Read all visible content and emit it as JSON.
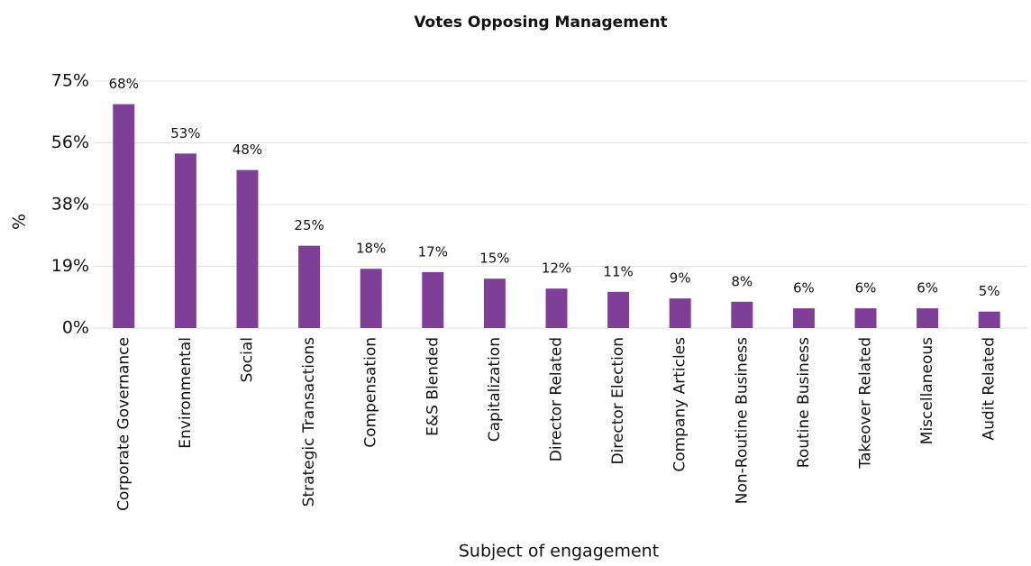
{
  "chart_data": {
    "type": "bar",
    "title": "Votes Opposing Management",
    "x_label": "Subject of engagement",
    "y_label": "%",
    "categories": [
      "Corporate Governance",
      "Environmental",
      "Social",
      "Strategic Transactions",
      "Compensation",
      "E&S Blended",
      "Capitalization",
      "Director Related",
      "Director Election",
      "Company Articles",
      "Non-Routine Business",
      "Routine Business",
      "Takeover Related",
      "Miscellaneous",
      "Audit Related"
    ],
    "values": [
      68,
      53,
      48,
      25,
      18,
      17,
      15,
      12,
      11,
      9,
      8,
      6,
      6,
      6,
      5
    ],
    "value_labels": [
      "68%",
      "53%",
      "48%",
      "25%",
      "18%",
      "17%",
      "15%",
      "12%",
      "11%",
      "9%",
      "8%",
      "6%",
      "6%",
      "6%",
      "5%"
    ],
    "color": "#7f3f98",
    "ylim": [
      0,
      75
    ],
    "yticks": [
      {
        "value": 0,
        "label": "0%"
      },
      {
        "value": 18.75,
        "label": "19%"
      },
      {
        "value": 37.5,
        "label": "38%"
      },
      {
        "value": 56.25,
        "label": "56%"
      },
      {
        "value": 75,
        "label": "75%"
      }
    ],
    "grid": true
  }
}
